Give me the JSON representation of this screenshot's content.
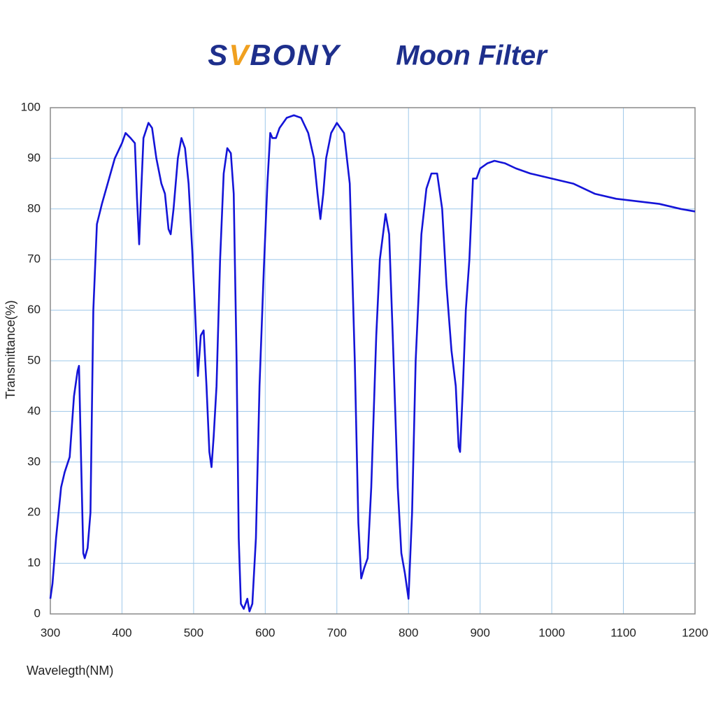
{
  "chart_data": {
    "type": "line",
    "brand": "SVBONY",
    "title": "Moon Filter",
    "x_label": "Wavelegth(NM)",
    "y_label": "Transmittance(%)",
    "xlim": [
      300,
      1200
    ],
    "ylim": [
      0,
      100
    ],
    "xticks": [
      300,
      400,
      500,
      600,
      700,
      800,
      900,
      1000,
      1100,
      1200
    ],
    "yticks": [
      0,
      10,
      20,
      30,
      40,
      50,
      60,
      70,
      80,
      90,
      100
    ],
    "grid": true,
    "series": [
      {
        "name": "Transmittance",
        "color": "#1414d8",
        "x": [
          300,
          303,
          308,
          315,
          320,
          327,
          333,
          338,
          340,
          343,
          346,
          348,
          352,
          356,
          360,
          365,
          372,
          380,
          390,
          400,
          405,
          412,
          418,
          421,
          424,
          427,
          430,
          437,
          442,
          448,
          455,
          460,
          465,
          468,
          472,
          478,
          483,
          488,
          493,
          498,
          502,
          506,
          510,
          514,
          518,
          522,
          525,
          528,
          532,
          537,
          542,
          547,
          552,
          556,
          560,
          563,
          566,
          570,
          575,
          578,
          582,
          587,
          592,
          598,
          603,
          607,
          610,
          615,
          620,
          630,
          640,
          650,
          660,
          668,
          673,
          677,
          681,
          685,
          692,
          700,
          710,
          718,
          725,
          730,
          734,
          738,
          743,
          748,
          755,
          760,
          768,
          773,
          778,
          785,
          790,
          795,
          800,
          805,
          810,
          818,
          825,
          832,
          840,
          847,
          853,
          860,
          866,
          870,
          872,
          876,
          880,
          885,
          890,
          895,
          900,
          910,
          920,
          935,
          950,
          970,
          1000,
          1030,
          1060,
          1090,
          1120,
          1150,
          1180,
          1200
        ],
        "values": [
          3,
          6,
          15,
          25,
          28,
          31,
          43,
          48,
          49,
          30,
          12,
          11,
          13,
          20,
          60,
          77,
          81,
          85,
          90,
          93,
          95,
          94,
          93,
          82,
          73,
          84,
          94,
          97,
          96,
          90,
          85,
          83,
          76,
          75,
          80,
          90,
          94,
          92,
          85,
          72,
          60,
          47,
          55,
          56,
          45,
          32,
          29,
          35,
          45,
          70,
          87,
          92,
          91,
          83,
          50,
          15,
          2,
          1,
          3,
          0.5,
          2,
          15,
          45,
          68,
          85,
          95,
          94,
          94,
          96,
          98,
          98.5,
          98,
          95,
          90,
          83,
          78,
          83,
          90,
          95,
          97,
          95,
          85,
          50,
          18,
          7,
          9,
          11,
          25,
          55,
          70,
          79,
          75,
          55,
          25,
          12,
          8,
          3,
          20,
          50,
          75,
          84,
          87,
          87,
          80,
          65,
          52,
          45,
          33,
          32,
          45,
          60,
          70,
          86,
          86,
          88,
          89,
          89.5,
          89,
          88,
          87,
          86,
          85,
          83,
          82,
          81.5,
          81,
          80,
          79.5
        ]
      }
    ]
  }
}
